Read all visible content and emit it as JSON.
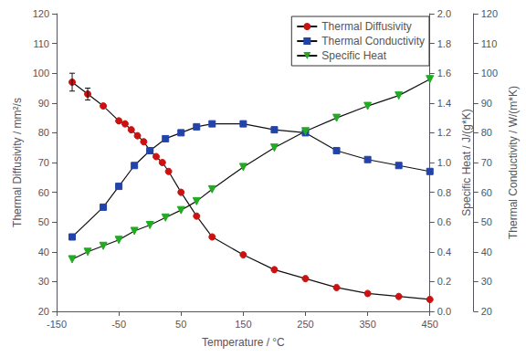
{
  "chart_data": {
    "type": "line",
    "xlabel": "Temperature / °C",
    "ylabel": "Thermal Diffusivity / mm²/s",
    "y2label": "Specific Heat / J/(g*K)",
    "y3label": "Thermal Conductivity / W/(m*K)",
    "xlim": [
      -150,
      450
    ],
    "xticks": [
      -150,
      -50,
      50,
      150,
      250,
      350,
      450
    ],
    "ylim": [
      20,
      120
    ],
    "yticks": [
      20,
      30,
      40,
      50,
      60,
      70,
      80,
      90,
      100,
      110,
      120
    ],
    "y2lim": [
      0.0,
      2.0
    ],
    "y2ticks": [
      {
        "value": 0.0,
        "label": "0.0"
      },
      0.2,
      0.4,
      0.6,
      0.8,
      {
        "value": 1.0,
        "label": "1.0"
      },
      1.2,
      1.4,
      1.6,
      1.8,
      {
        "value": 2.0,
        "label": "2.0"
      }
    ],
    "y3lim": [
      20,
      120
    ],
    "y3ticks": [
      20,
      30,
      40,
      50,
      60,
      70,
      80,
      90,
      100,
      110,
      120
    ],
    "grid": false,
    "legend": "upper right",
    "color": "#111111",
    "series": [
      {
        "name": "Thermal Diffusivity",
        "color": "#cc1111",
        "marker": "circle",
        "x": [
          -125,
          -100,
          -75,
          -50,
          -40,
          -30,
          -20,
          -10,
          0,
          10,
          20,
          30,
          50,
          75,
          100,
          150,
          200,
          250,
          300,
          350,
          400,
          450
        ],
        "values": [
          97,
          93,
          89,
          84,
          83,
          81,
          79,
          77,
          74,
          72,
          70,
          67,
          60,
          52,
          45,
          39,
          34,
          31,
          28,
          26,
          25,
          24
        ],
        "yerr": [
          3,
          2,
          null,
          null,
          null,
          null,
          null,
          null,
          null,
          null,
          null,
          null,
          null,
          null,
          null,
          null,
          null,
          null,
          null,
          null,
          null,
          null
        ]
      },
      {
        "name": "Thermal Conductivity",
        "color": "#2244aa",
        "marker": "square",
        "x": [
          -125,
          -75,
          -50,
          -25,
          0,
          25,
          50,
          75,
          100,
          150,
          200,
          250,
          300,
          350,
          400,
          450
        ],
        "values": [
          45,
          55,
          62,
          69,
          74,
          78,
          80,
          82,
          83,
          83,
          81,
          80,
          74,
          71,
          69,
          67
        ]
      },
      {
        "name": "Specific Heat",
        "color": "#22aa22",
        "marker": "triangle_down",
        "axis": "y2",
        "x": [
          -125,
          -100,
          -75,
          -50,
          -25,
          0,
          25,
          50,
          75,
          100,
          150,
          200,
          250,
          300,
          350,
          400,
          450
        ],
        "values": [
          0.35,
          0.4,
          0.44,
          0.48,
          0.54,
          0.58,
          0.63,
          0.68,
          0.74,
          0.82,
          0.97,
          1.1,
          1.21,
          1.3,
          1.38,
          1.45,
          1.56
        ]
      }
    ]
  }
}
